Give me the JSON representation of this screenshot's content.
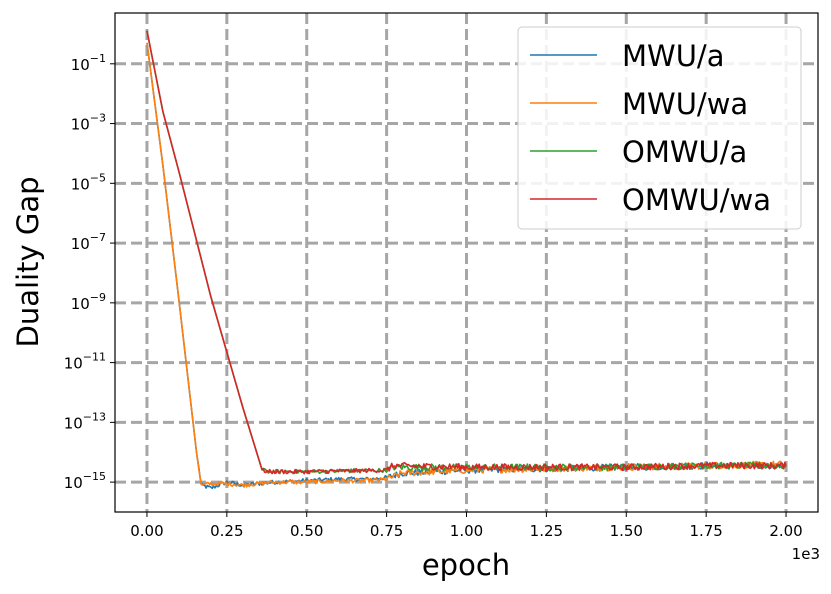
{
  "chart_data": {
    "type": "line",
    "xlabel": "epoch",
    "ylabel": "Duality Gap",
    "x_scale_label": "1e3",
    "x_ticks": [
      "0.00",
      "0.25",
      "0.50",
      "0.75",
      "1.00",
      "1.25",
      "1.50",
      "1.75",
      "2.00"
    ],
    "x_tick_values": [
      0,
      0.25,
      0.5,
      0.75,
      1.0,
      1.25,
      1.5,
      1.75,
      2.0
    ],
    "y_tick_exponents": [
      -1,
      -3,
      -5,
      -7,
      -9,
      -11,
      -13,
      -15
    ],
    "y_tick_base": "10",
    "xlim": [
      -0.1,
      2.1
    ],
    "ylog_lim": [
      -16.0,
      0.7
    ],
    "y_scale": "log",
    "grid": true,
    "legend_position": "top-right",
    "series": [
      {
        "name": "MWU/a",
        "color": "#1f77b4",
        "x": [
          0,
          0.05,
          0.1,
          0.155,
          0.17,
          0.2,
          0.25,
          0.3,
          0.4,
          0.5,
          0.6,
          0.7,
          0.75,
          0.8,
          1.0,
          1.25,
          1.5,
          1.75,
          2.0
        ],
        "log10_y": [
          -0.3,
          -4.4,
          -8.9,
          -14.0,
          -15.1,
          -15.2,
          -15.0,
          -15.1,
          -15.0,
          -14.95,
          -14.9,
          -14.9,
          -14.85,
          -14.7,
          -14.6,
          -14.55,
          -14.5,
          -14.45,
          -14.45
        ]
      },
      {
        "name": "MWU/wa",
        "color": "#ff7f0e",
        "x": [
          0,
          0.05,
          0.1,
          0.155,
          0.17,
          0.2,
          0.25,
          0.3,
          0.4,
          0.5,
          0.6,
          0.7,
          0.75,
          0.8,
          1.0,
          1.25,
          1.5,
          1.75,
          2.0
        ],
        "log10_y": [
          -0.3,
          -4.4,
          -8.9,
          -14.0,
          -15.1,
          -15.05,
          -15.05,
          -15.1,
          -15.0,
          -15.0,
          -14.95,
          -14.95,
          -14.9,
          -14.7,
          -14.6,
          -14.55,
          -14.5,
          -14.45,
          -14.4
        ]
      },
      {
        "name": "OMWU/a",
        "color": "#2ca02c",
        "x": [
          0,
          0.05,
          0.1,
          0.2,
          0.3,
          0.36,
          0.38,
          0.5,
          0.75,
          0.77,
          1.0,
          1.25,
          1.5,
          1.75,
          2.0
        ],
        "log10_y": [
          0.1,
          -2.6,
          -4.6,
          -8.8,
          -12.5,
          -14.6,
          -14.65,
          -14.65,
          -14.6,
          -14.5,
          -14.5,
          -14.5,
          -14.5,
          -14.45,
          -14.45
        ]
      },
      {
        "name": "OMWU/wa",
        "color": "#d62728",
        "x": [
          0,
          0.05,
          0.1,
          0.2,
          0.3,
          0.36,
          0.38,
          0.5,
          0.75,
          0.77,
          1.0,
          1.25,
          1.5,
          1.75,
          2.0
        ],
        "log10_y": [
          0.1,
          -2.6,
          -4.6,
          -8.8,
          -12.5,
          -14.6,
          -14.65,
          -14.65,
          -14.6,
          -14.45,
          -14.5,
          -14.5,
          -14.5,
          -14.45,
          -14.45
        ]
      }
    ]
  }
}
